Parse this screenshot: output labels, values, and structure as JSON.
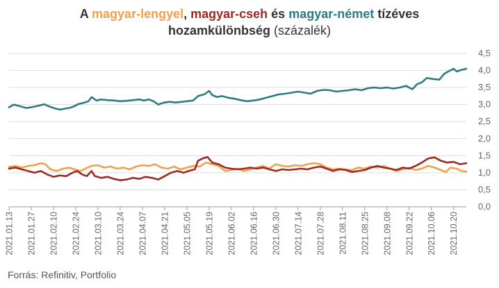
{
  "title": {
    "p1": "A ",
    "s1": "magyar-lengyel",
    "p2": ", ",
    "s2": "magyar-cseh",
    "p3": " és ",
    "s3": "magyar-német",
    "p4": " tízéves",
    "line2_bold": "hozamkülönbség",
    "line2_light": " (százalék)"
  },
  "source": "Forrás: Refinitiv, Portfolio",
  "colors": {
    "pl": "#f0a04b",
    "cz": "#9b2a23",
    "de": "#2e7a83",
    "grid": "#dcdcdc",
    "axis": "#999999"
  },
  "chart_data": {
    "type": "line",
    "ylim": [
      0,
      4.5
    ],
    "y_ticks": [
      "0,0",
      "0,5",
      "1,0",
      "1,5",
      "2,0",
      "2,5",
      "3,0",
      "3,5",
      "4,0",
      "4,5"
    ],
    "x_ticks": [
      "2021.01.13",
      "2021.01.27",
      "2021.02.10",
      "2021.02.24",
      "2021.03.10",
      "2021.03.24",
      "2021.04.07",
      "2021.04.21",
      "2021.05.05",
      "2021.05.19",
      "2021.06.02",
      "2021.06.16",
      "2021.06.30",
      "2021.07.14",
      "2021.07.28",
      "2021.08.11",
      "2021.08.25",
      "2021.09.08",
      "2021.09.22",
      "2021.10.06",
      "2021.10.20"
    ],
    "x_range": [
      "2021.01.13",
      "2021.10.28"
    ],
    "grid": true,
    "series": [
      {
        "name": "magyar-német",
        "color": "#2e7a83",
        "points": [
          [
            "2021.01.13",
            2.92
          ],
          [
            "2021.01.16",
            3.0
          ],
          [
            "2021.01.20",
            2.95
          ],
          [
            "2021.01.24",
            2.9
          ],
          [
            "2021.01.28",
            2.93
          ],
          [
            "2021.02.01",
            2.97
          ],
          [
            "2021.02.04",
            3.01
          ],
          [
            "2021.02.07",
            2.95
          ],
          [
            "2021.02.10",
            2.9
          ],
          [
            "2021.02.14",
            2.85
          ],
          [
            "2021.02.17",
            2.88
          ],
          [
            "2021.02.20",
            2.9
          ],
          [
            "2021.02.23",
            2.95
          ],
          [
            "2021.02.26",
            3.02
          ],
          [
            "2021.03.01",
            3.05
          ],
          [
            "2021.03.04",
            3.1
          ],
          [
            "2021.03.06",
            3.22
          ],
          [
            "2021.03.09",
            3.12
          ],
          [
            "2021.03.12",
            3.15
          ],
          [
            "2021.03.16",
            3.13
          ],
          [
            "2021.03.20",
            3.12
          ],
          [
            "2021.03.24",
            3.1
          ],
          [
            "2021.03.28",
            3.11
          ],
          [
            "2021.04.01",
            3.13
          ],
          [
            "2021.04.05",
            3.15
          ],
          [
            "2021.04.08",
            3.12
          ],
          [
            "2021.04.11",
            3.15
          ],
          [
            "2021.04.14",
            3.1
          ],
          [
            "2021.04.17",
            3.0
          ],
          [
            "2021.04.20",
            3.05
          ],
          [
            "2021.04.24",
            3.08
          ],
          [
            "2021.04.28",
            3.06
          ],
          [
            "2021.05.02",
            3.08
          ],
          [
            "2021.05.05",
            3.1
          ],
          [
            "2021.05.09",
            3.12
          ],
          [
            "2021.05.12",
            3.25
          ],
          [
            "2021.05.16",
            3.3
          ],
          [
            "2021.05.19",
            3.4
          ],
          [
            "2021.05.21",
            3.28
          ],
          [
            "2021.05.24",
            3.22
          ],
          [
            "2021.05.27",
            3.25
          ],
          [
            "2021.05.31",
            3.2
          ],
          [
            "2021.06.03",
            3.18
          ],
          [
            "2021.06.06",
            3.15
          ],
          [
            "2021.06.09",
            3.12
          ],
          [
            "2021.06.12",
            3.1
          ],
          [
            "2021.06.16",
            3.12
          ],
          [
            "2021.06.20",
            3.15
          ],
          [
            "2021.06.24",
            3.2
          ],
          [
            "2021.06.28",
            3.25
          ],
          [
            "2021.07.02",
            3.3
          ],
          [
            "2021.07.06",
            3.32
          ],
          [
            "2021.07.10",
            3.35
          ],
          [
            "2021.07.14",
            3.38
          ],
          [
            "2021.07.18",
            3.35
          ],
          [
            "2021.07.22",
            3.32
          ],
          [
            "2021.07.26",
            3.4
          ],
          [
            "2021.07.30",
            3.43
          ],
          [
            "2021.08.03",
            3.42
          ],
          [
            "2021.08.07",
            3.38
          ],
          [
            "2021.08.11",
            3.4
          ],
          [
            "2021.08.15",
            3.42
          ],
          [
            "2021.08.19",
            3.45
          ],
          [
            "2021.08.23",
            3.42
          ],
          [
            "2021.08.27",
            3.48
          ],
          [
            "2021.08.31",
            3.5
          ],
          [
            "2021.09.04",
            3.48
          ],
          [
            "2021.09.08",
            3.5
          ],
          [
            "2021.09.12",
            3.47
          ],
          [
            "2021.09.16",
            3.5
          ],
          [
            "2021.09.20",
            3.55
          ],
          [
            "2021.09.24",
            3.45
          ],
          [
            "2021.09.27",
            3.6
          ],
          [
            "2021.09.30",
            3.65
          ],
          [
            "2021.10.03",
            3.78
          ],
          [
            "2021.10.07",
            3.75
          ],
          [
            "2021.10.11",
            3.73
          ],
          [
            "2021.10.14",
            3.9
          ],
          [
            "2021.10.17",
            3.98
          ],
          [
            "2021.10.20",
            4.05
          ],
          [
            "2021.10.22",
            3.97
          ],
          [
            "2021.10.25",
            4.02
          ],
          [
            "2021.10.28",
            4.05
          ]
        ]
      },
      {
        "name": "magyar-lengyel",
        "color": "#f0a04b",
        "points": [
          [
            "2021.01.13",
            1.17
          ],
          [
            "2021.01.17",
            1.2
          ],
          [
            "2021.01.21",
            1.15
          ],
          [
            "2021.01.25",
            1.2
          ],
          [
            "2021.01.29",
            1.22
          ],
          [
            "2021.02.02",
            1.28
          ],
          [
            "2021.02.05",
            1.25
          ],
          [
            "2021.02.08",
            1.1
          ],
          [
            "2021.02.12",
            1.05
          ],
          [
            "2021.02.16",
            1.12
          ],
          [
            "2021.02.20",
            1.15
          ],
          [
            "2021.02.23",
            1.1
          ],
          [
            "2021.02.27",
            1.05
          ],
          [
            "2021.03.02",
            1.12
          ],
          [
            "2021.03.06",
            1.2
          ],
          [
            "2021.03.10",
            1.22
          ],
          [
            "2021.03.14",
            1.15
          ],
          [
            "2021.03.18",
            1.18
          ],
          [
            "2021.03.22",
            1.12
          ],
          [
            "2021.03.26",
            1.15
          ],
          [
            "2021.03.30",
            1.1
          ],
          [
            "2021.04.03",
            1.18
          ],
          [
            "2021.04.07",
            1.22
          ],
          [
            "2021.04.11",
            1.2
          ],
          [
            "2021.04.15",
            1.25
          ],
          [
            "2021.04.19",
            1.15
          ],
          [
            "2021.04.23",
            1.12
          ],
          [
            "2021.04.27",
            1.18
          ],
          [
            "2021.05.01",
            1.1
          ],
          [
            "2021.05.05",
            1.15
          ],
          [
            "2021.05.09",
            1.2
          ],
          [
            "2021.05.13",
            1.18
          ],
          [
            "2021.05.17",
            1.3
          ],
          [
            "2021.05.21",
            1.25
          ],
          [
            "2021.05.25",
            1.2
          ],
          [
            "2021.05.29",
            1.05
          ],
          [
            "2021.06.02",
            1.08
          ],
          [
            "2021.06.06",
            1.12
          ],
          [
            "2021.06.10",
            1.05
          ],
          [
            "2021.06.14",
            1.1
          ],
          [
            "2021.06.18",
            1.15
          ],
          [
            "2021.06.22",
            1.2
          ],
          [
            "2021.06.26",
            1.12
          ],
          [
            "2021.06.30",
            1.25
          ],
          [
            "2021.07.04",
            1.2
          ],
          [
            "2021.07.08",
            1.18
          ],
          [
            "2021.07.12",
            1.22
          ],
          [
            "2021.07.16",
            1.2
          ],
          [
            "2021.07.20",
            1.25
          ],
          [
            "2021.07.24",
            1.28
          ],
          [
            "2021.07.28",
            1.25
          ],
          [
            "2021.08.01",
            1.15
          ],
          [
            "2021.08.05",
            1.1
          ],
          [
            "2021.08.09",
            1.12
          ],
          [
            "2021.08.13",
            1.1
          ],
          [
            "2021.08.17",
            1.08
          ],
          [
            "2021.08.21",
            1.15
          ],
          [
            "2021.08.25",
            1.12
          ],
          [
            "2021.08.29",
            1.18
          ],
          [
            "2021.09.02",
            1.15
          ],
          [
            "2021.09.06",
            1.2
          ],
          [
            "2021.09.10",
            1.12
          ],
          [
            "2021.09.14",
            1.05
          ],
          [
            "2021.09.18",
            1.1
          ],
          [
            "2021.09.22",
            1.15
          ],
          [
            "2021.09.26",
            1.08
          ],
          [
            "2021.09.30",
            1.12
          ],
          [
            "2021.10.04",
            1.2
          ],
          [
            "2021.10.08",
            1.15
          ],
          [
            "2021.10.12",
            1.08
          ],
          [
            "2021.10.15",
            1.02
          ],
          [
            "2021.10.18",
            1.15
          ],
          [
            "2021.10.22",
            1.12
          ],
          [
            "2021.10.25",
            1.05
          ],
          [
            "2021.10.28",
            1.03
          ]
        ]
      },
      {
        "name": "magyar-cseh",
        "color": "#9b2a23",
        "points": [
          [
            "2021.01.13",
            1.12
          ],
          [
            "2021.01.17",
            1.15
          ],
          [
            "2021.01.21",
            1.1
          ],
          [
            "2021.01.25",
            1.05
          ],
          [
            "2021.01.29",
            1.0
          ],
          [
            "2021.02.02",
            1.05
          ],
          [
            "2021.02.06",
            0.95
          ],
          [
            "2021.02.10",
            0.88
          ],
          [
            "2021.02.14",
            0.92
          ],
          [
            "2021.02.18",
            0.9
          ],
          [
            "2021.02.22",
            1.0
          ],
          [
            "2021.02.25",
            1.05
          ],
          [
            "2021.02.28",
            0.95
          ],
          [
            "2021.03.03",
            0.9
          ],
          [
            "2021.03.06",
            1.05
          ],
          [
            "2021.03.08",
            0.9
          ],
          [
            "2021.03.12",
            0.85
          ],
          [
            "2021.03.16",
            0.88
          ],
          [
            "2021.03.20",
            0.82
          ],
          [
            "2021.03.24",
            0.78
          ],
          [
            "2021.03.28",
            0.8
          ],
          [
            "2021.04.01",
            0.85
          ],
          [
            "2021.04.05",
            0.82
          ],
          [
            "2021.04.09",
            0.88
          ],
          [
            "2021.04.13",
            0.85
          ],
          [
            "2021.04.17",
            0.8
          ],
          [
            "2021.04.21",
            0.9
          ],
          [
            "2021.04.25",
            1.0
          ],
          [
            "2021.04.29",
            1.05
          ],
          [
            "2021.05.03",
            1.0
          ],
          [
            "2021.05.06",
            1.05
          ],
          [
            "2021.05.10",
            1.1
          ],
          [
            "2021.05.12",
            1.35
          ],
          [
            "2021.05.15",
            1.42
          ],
          [
            "2021.05.18",
            1.46
          ],
          [
            "2021.05.21",
            1.3
          ],
          [
            "2021.05.25",
            1.25
          ],
          [
            "2021.05.29",
            1.15
          ],
          [
            "2021.06.02",
            1.12
          ],
          [
            "2021.06.06",
            1.1
          ],
          [
            "2021.06.10",
            1.12
          ],
          [
            "2021.06.14",
            1.15
          ],
          [
            "2021.06.18",
            1.12
          ],
          [
            "2021.06.22",
            1.15
          ],
          [
            "2021.06.26",
            1.1
          ],
          [
            "2021.06.30",
            1.05
          ],
          [
            "2021.07.04",
            1.1
          ],
          [
            "2021.07.08",
            1.08
          ],
          [
            "2021.07.12",
            1.1
          ],
          [
            "2021.07.16",
            1.12
          ],
          [
            "2021.07.20",
            1.1
          ],
          [
            "2021.07.24",
            1.15
          ],
          [
            "2021.07.28",
            1.18
          ],
          [
            "2021.08.01",
            1.12
          ],
          [
            "2021.08.05",
            1.05
          ],
          [
            "2021.08.09",
            1.1
          ],
          [
            "2021.08.13",
            1.08
          ],
          [
            "2021.08.17",
            1.02
          ],
          [
            "2021.08.21",
            1.05
          ],
          [
            "2021.08.25",
            1.08
          ],
          [
            "2021.08.29",
            1.15
          ],
          [
            "2021.09.02",
            1.2
          ],
          [
            "2021.09.06",
            1.15
          ],
          [
            "2021.09.10",
            1.12
          ],
          [
            "2021.09.14",
            1.08
          ],
          [
            "2021.09.18",
            1.15
          ],
          [
            "2021.09.22",
            1.12
          ],
          [
            "2021.09.26",
            1.2
          ],
          [
            "2021.09.30",
            1.3
          ],
          [
            "2021.10.04",
            1.42
          ],
          [
            "2021.10.08",
            1.45
          ],
          [
            "2021.10.12",
            1.35
          ],
          [
            "2021.10.16",
            1.3
          ],
          [
            "2021.10.20",
            1.32
          ],
          [
            "2021.10.24",
            1.25
          ],
          [
            "2021.10.28",
            1.28
          ]
        ]
      }
    ]
  }
}
